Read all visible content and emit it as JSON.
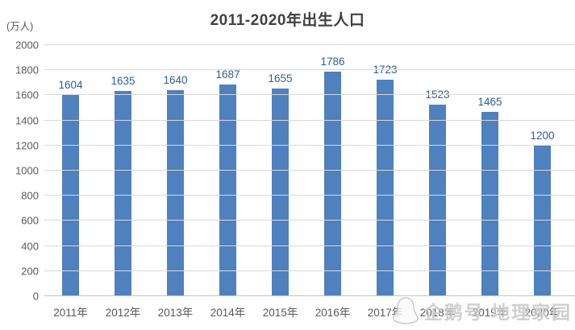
{
  "page": {
    "background": "#ffffff"
  },
  "chart_data": {
    "type": "bar",
    "title": "2011-2020年出生人口",
    "unit_label": "(万人)",
    "categories": [
      "2011年",
      "2012年",
      "2013年",
      "2014年",
      "2015年",
      "2016年",
      "2017年",
      "2018年",
      "2019年",
      "2020年"
    ],
    "values": [
      1604,
      1635,
      1640,
      1687,
      1655,
      1786,
      1723,
      1523,
      1465,
      1200
    ],
    "xlabel": "",
    "ylabel": "",
    "ylim": [
      0,
      2000
    ],
    "ytick_step": 200,
    "yticks": [
      0,
      200,
      400,
      600,
      800,
      1000,
      1200,
      1400,
      1600,
      1800,
      2000
    ],
    "grid": true,
    "legend": "none",
    "data_labels": true,
    "colors": {
      "bar": "#4e81bd",
      "value_label": "#2e5d9e",
      "axis_text": "#595959",
      "gridline": "#d9d9d9",
      "baseline": "#c3c3c3",
      "title": "#404040"
    }
  },
  "watermark": {
    "icon": "penguin-icon",
    "text": "企鹅号 地理家园"
  }
}
